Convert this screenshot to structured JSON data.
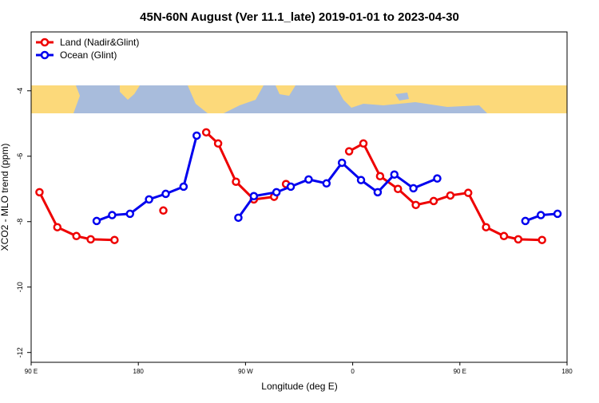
{
  "chart_data": {
    "type": "line",
    "title": "45N-60N August (Ver 11.1_late)   2019-01-01 to 2023-04-30",
    "x_label": "Longitude (deg E)",
    "y_label": "XCO2 - MLO trend (ppm)",
    "xlim": [
      90,
      540
    ],
    "xticks": [
      {
        "value": 90,
        "label": "90 E"
      },
      180,
      {
        "value": 270,
        "label": "90 W"
      },
      {
        "value": 360,
        "label": "0"
      },
      {
        "value": 450,
        "label": "90 E"
      },
      {
        "value": 540,
        "label": "180"
      }
    ],
    "ylim": [
      -12.3,
      -2.2
    ],
    "yticks": [
      -4,
      -6,
      -8,
      -10,
      -12
    ],
    "legend": "top-left",
    "series": [
      {
        "name": "Land (Nadir&Glint)",
        "color": "#ee0000",
        "x": [
          97,
          112,
          128,
          140,
          160,
          null,
          201,
          null,
          237,
          247,
          262,
          277,
          294,
          null,
          304,
          null,
          357,
          369,
          383,
          398,
          413,
          428,
          442,
          457,
          472,
          487,
          499,
          519
        ],
        "values": [
          -7.1,
          -8.17,
          -8.44,
          -8.54,
          -8.56,
          null,
          -7.66,
          null,
          -5.27,
          -5.61,
          -6.78,
          -7.32,
          -7.24,
          null,
          -6.85,
          null,
          -5.85,
          -5.61,
          -6.61,
          -7.0,
          -7.49,
          -7.37,
          -7.2,
          -7.12,
          -8.17,
          -8.44,
          -8.54,
          -8.56
        ]
      },
      {
        "name": "Ocean (Glint)",
        "color": "#0000ee",
        "x": [
          145,
          158,
          173,
          189,
          203,
          218,
          229,
          null,
          264,
          277,
          296,
          308,
          323,
          338,
          351,
          367,
          381,
          395,
          411,
          431,
          null,
          505,
          518,
          532
        ],
        "values": [
          -7.98,
          -7.8,
          -7.76,
          -7.32,
          -7.15,
          -6.93,
          -5.37,
          null,
          -7.88,
          -7.22,
          -7.1,
          -6.93,
          -6.71,
          -6.83,
          -6.2,
          -6.73,
          -7.1,
          -6.56,
          -6.98,
          -6.68,
          null,
          -7.98,
          -7.8,
          -7.76
        ]
      }
    ]
  }
}
